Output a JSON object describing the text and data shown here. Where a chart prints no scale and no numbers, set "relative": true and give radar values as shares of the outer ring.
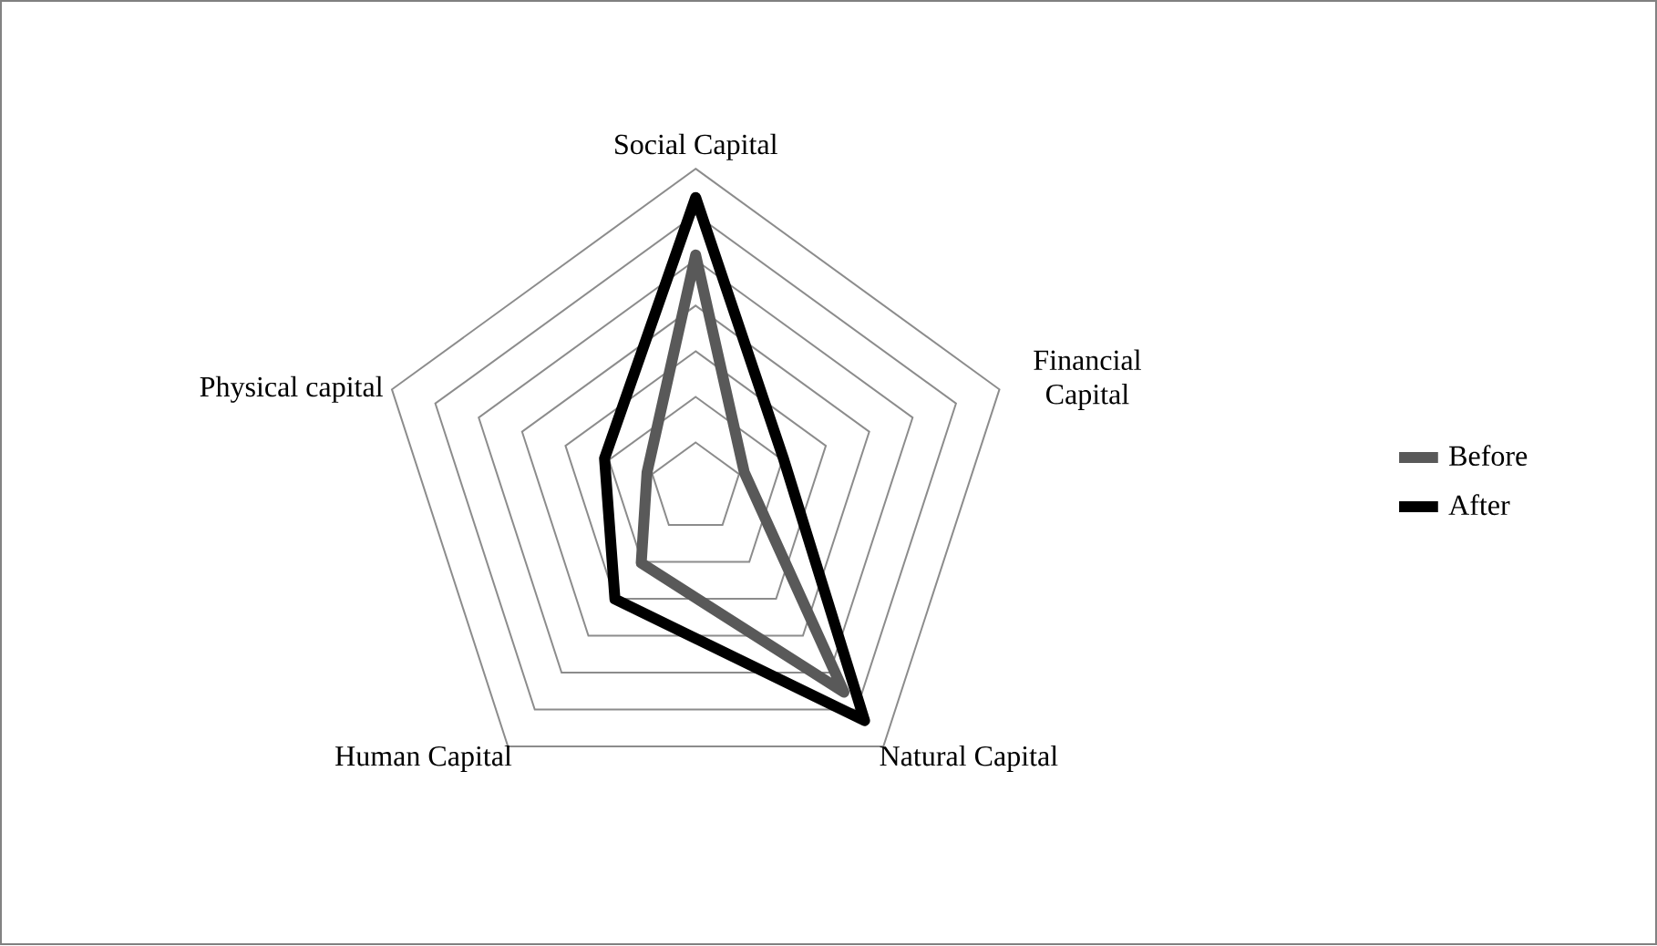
{
  "chart_data": {
    "type": "radar",
    "relative": true,
    "categories": [
      "Social Capital",
      "Financial Capital",
      "Natural Capital",
      "Human Capital",
      "Physical capital"
    ],
    "series": [
      {
        "name": "Before",
        "color": "#595959",
        "values": [
          0.73,
          0.16,
          0.79,
          0.29,
          0.16
        ]
      },
      {
        "name": "After",
        "color": "#000000",
        "values": [
          0.91,
          0.29,
          0.9,
          0.43,
          0.3
        ]
      }
    ],
    "grid": true,
    "legend": "right",
    "marker": "none",
    "line_style": "solid"
  }
}
